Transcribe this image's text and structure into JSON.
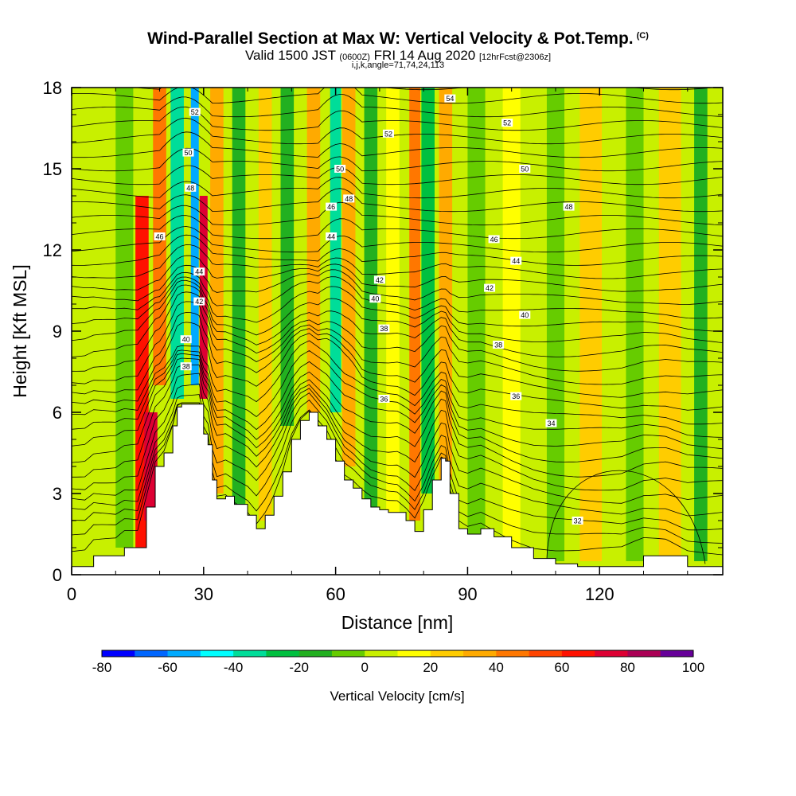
{
  "header": {
    "title": "Wind-Parallel Section at Max W: Vertical Velocity & Pot.Temp.",
    "copyright": "(C)",
    "subtitle_a": "Valid 1500 JST",
    "subtitle_b": "(0600Z)",
    "subtitle_c": "FRI 14 Aug 2020",
    "subtitle_d": "[12hrFcst@2306z]",
    "params": "i,j,k,angle=71,74,24,113"
  },
  "chart_data": {
    "type": "heatmap",
    "title": "Wind-Parallel Section at Max W: Vertical Velocity & Pot.Temp.",
    "xlabel": "Distance [nm]",
    "ylabel": "Height [Kft MSL]",
    "xlim": [
      0,
      148
    ],
    "ylim": [
      0,
      18
    ],
    "x_ticks": [
      0,
      30,
      60,
      90,
      120
    ],
    "y_ticks": [
      0,
      3,
      6,
      9,
      12,
      15,
      18
    ],
    "colorbar": {
      "label": "Vertical Velocity [cm/s]",
      "min": -80,
      "max": 100,
      "step": 10,
      "tick_values": [
        -80,
        -60,
        -40,
        -20,
        0,
        20,
        40,
        60,
        80,
        100
      ],
      "colors": [
        "#0000ff",
        "#0066ff",
        "#00aaff",
        "#00ffff",
        "#00dd99",
        "#00c040",
        "#22b020",
        "#66cc00",
        "#c8f000",
        "#ffff00",
        "#ffcc00",
        "#ffaa00",
        "#ff7700",
        "#ff4400",
        "#ff1100",
        "#dd0033",
        "#aa0055",
        "#660099"
      ]
    },
    "terrain_kft": {
      "x": [
        0,
        3,
        5,
        10,
        12,
        15,
        17,
        19,
        21,
        23,
        24,
        25,
        27,
        29,
        30,
        31,
        32,
        33,
        35,
        37,
        40,
        42,
        44,
        46,
        48,
        50,
        52,
        54,
        56,
        58,
        60,
        62,
        64,
        66,
        68,
        70,
        72,
        74,
        76,
        78,
        80,
        82,
        84,
        85,
        86,
        88,
        90,
        93,
        96,
        100,
        105,
        110,
        115,
        125,
        130,
        135,
        140,
        143,
        148
      ],
      "y": [
        0.3,
        0.3,
        0.7,
        0.7,
        1.0,
        1.0,
        2.5,
        4.0,
        4.5,
        5.5,
        6.2,
        6.3,
        6.3,
        6.3,
        5.2,
        4.8,
        3.5,
        2.8,
        2.9,
        2.6,
        2.2,
        1.7,
        2.2,
        2.9,
        3.8,
        5.0,
        5.7,
        6.0,
        5.5,
        5.0,
        4.2,
        3.5,
        3.2,
        2.8,
        2.5,
        2.4,
        2.3,
        2.3,
        2.0,
        1.6,
        2.4,
        3.5,
        4.3,
        4.2,
        3.0,
        1.7,
        1.5,
        1.7,
        1.4,
        1.0,
        0.6,
        0.4,
        0.3,
        0.3,
        0.7,
        0.7,
        0.3,
        0.3,
        0.3
      ]
    },
    "vertical_velocity_bands": [
      {
        "x": 6,
        "width": 4,
        "y0": 0,
        "y1": 18,
        "value": 0
      },
      {
        "x": 12,
        "width": 4,
        "y0": 1,
        "y1": 18,
        "value": -10
      },
      {
        "x": 16,
        "width": 3,
        "y0": 1,
        "y1": 14,
        "value": 60
      },
      {
        "x": 18,
        "width": 3,
        "y0": 2,
        "y1": 6,
        "value": 70
      },
      {
        "x": 20,
        "width": 3,
        "y0": 7,
        "y1": 18,
        "value": 40
      },
      {
        "x": 24,
        "width": 3,
        "y0": 6.5,
        "y1": 18,
        "value": -40
      },
      {
        "x": 28,
        "width": 1.8,
        "y0": 7,
        "y1": 18,
        "value": -60
      },
      {
        "x": 30,
        "width": 1.8,
        "y0": 6.5,
        "y1": 14,
        "value": 70
      },
      {
        "x": 33,
        "width": 3,
        "y0": 3,
        "y1": 18,
        "value": 30
      },
      {
        "x": 38,
        "width": 3,
        "y0": 2,
        "y1": 18,
        "value": -20
      },
      {
        "x": 44,
        "width": 3,
        "y0": 2,
        "y1": 18,
        "value": 20
      },
      {
        "x": 49,
        "width": 3,
        "y0": 5.5,
        "y1": 18,
        "value": -20
      },
      {
        "x": 55,
        "width": 3,
        "y0": 6,
        "y1": 18,
        "value": 30
      },
      {
        "x": 60,
        "width": 2.5,
        "y0": 6,
        "y1": 18,
        "value": -40
      },
      {
        "x": 63,
        "width": 3,
        "y0": 4,
        "y1": 18,
        "value": 30
      },
      {
        "x": 68,
        "width": 3,
        "y0": 2,
        "y1": 18,
        "value": -20
      },
      {
        "x": 73,
        "width": 3,
        "y0": 2,
        "y1": 18,
        "value": 10
      },
      {
        "x": 78,
        "width": 2.5,
        "y0": 2,
        "y1": 18,
        "value": 40
      },
      {
        "x": 81,
        "width": 3,
        "y0": 3,
        "y1": 18,
        "value": -30
      },
      {
        "x": 85,
        "width": 3,
        "y0": 3.5,
        "y1": 18,
        "value": 30
      },
      {
        "x": 92,
        "width": 4,
        "y0": 1.5,
        "y1": 18,
        "value": -10
      },
      {
        "x": 100,
        "width": 4,
        "y0": 1,
        "y1": 18,
        "value": 10
      },
      {
        "x": 110,
        "width": 4,
        "y0": 0.5,
        "y1": 18,
        "value": -10
      },
      {
        "x": 118,
        "width": 5,
        "y0": 0.5,
        "y1": 18,
        "value": 20
      },
      {
        "x": 128,
        "width": 4,
        "y0": 0.5,
        "y1": 18,
        "value": -10
      },
      {
        "x": 136,
        "width": 5,
        "y0": 0.5,
        "y1": 18,
        "value": 20
      },
      {
        "x": 143,
        "width": 3,
        "y0": 0.5,
        "y1": 18,
        "value": -20
      }
    ],
    "potential_temperature_labels": [
      {
        "text": "52",
        "x": 28,
        "y": 17.1
      },
      {
        "text": "50",
        "x": 26.5,
        "y": 15.6
      },
      {
        "text": "48",
        "x": 27,
        "y": 14.3
      },
      {
        "text": "46",
        "x": 20,
        "y": 12.5
      },
      {
        "text": "44",
        "x": 29,
        "y": 11.2
      },
      {
        "text": "42",
        "x": 29,
        "y": 10.1
      },
      {
        "text": "40",
        "x": 26,
        "y": 8.7
      },
      {
        "text": "38",
        "x": 26,
        "y": 7.7
      },
      {
        "text": "54",
        "x": 86,
        "y": 17.6
      },
      {
        "text": "52",
        "x": 72,
        "y": 16.3
      },
      {
        "text": "52",
        "x": 99,
        "y": 16.7
      },
      {
        "text": "50",
        "x": 61,
        "y": 15.0
      },
      {
        "text": "50",
        "x": 103,
        "y": 15.0
      },
      {
        "text": "48",
        "x": 63,
        "y": 13.9
      },
      {
        "text": "48",
        "x": 113,
        "y": 13.6
      },
      {
        "text": "46",
        "x": 59,
        "y": 13.6
      },
      {
        "text": "46",
        "x": 96,
        "y": 12.4
      },
      {
        "text": "44",
        "x": 59,
        "y": 12.5
      },
      {
        "text": "44",
        "x": 101,
        "y": 11.6
      },
      {
        "text": "42",
        "x": 70,
        "y": 10.9
      },
      {
        "text": "42",
        "x": 95,
        "y": 10.6
      },
      {
        "text": "40",
        "x": 69,
        "y": 10.2
      },
      {
        "text": "40",
        "x": 103,
        "y": 9.6
      },
      {
        "text": "38",
        "x": 71,
        "y": 9.1
      },
      {
        "text": "38",
        "x": 97,
        "y": 8.5
      },
      {
        "text": "36",
        "x": 71,
        "y": 6.5
      },
      {
        "text": "36",
        "x": 101,
        "y": 6.6
      },
      {
        "text": "34",
        "x": 109,
        "y": 5.6
      },
      {
        "text": "32",
        "x": 115,
        "y": 2.0
      }
    ]
  }
}
